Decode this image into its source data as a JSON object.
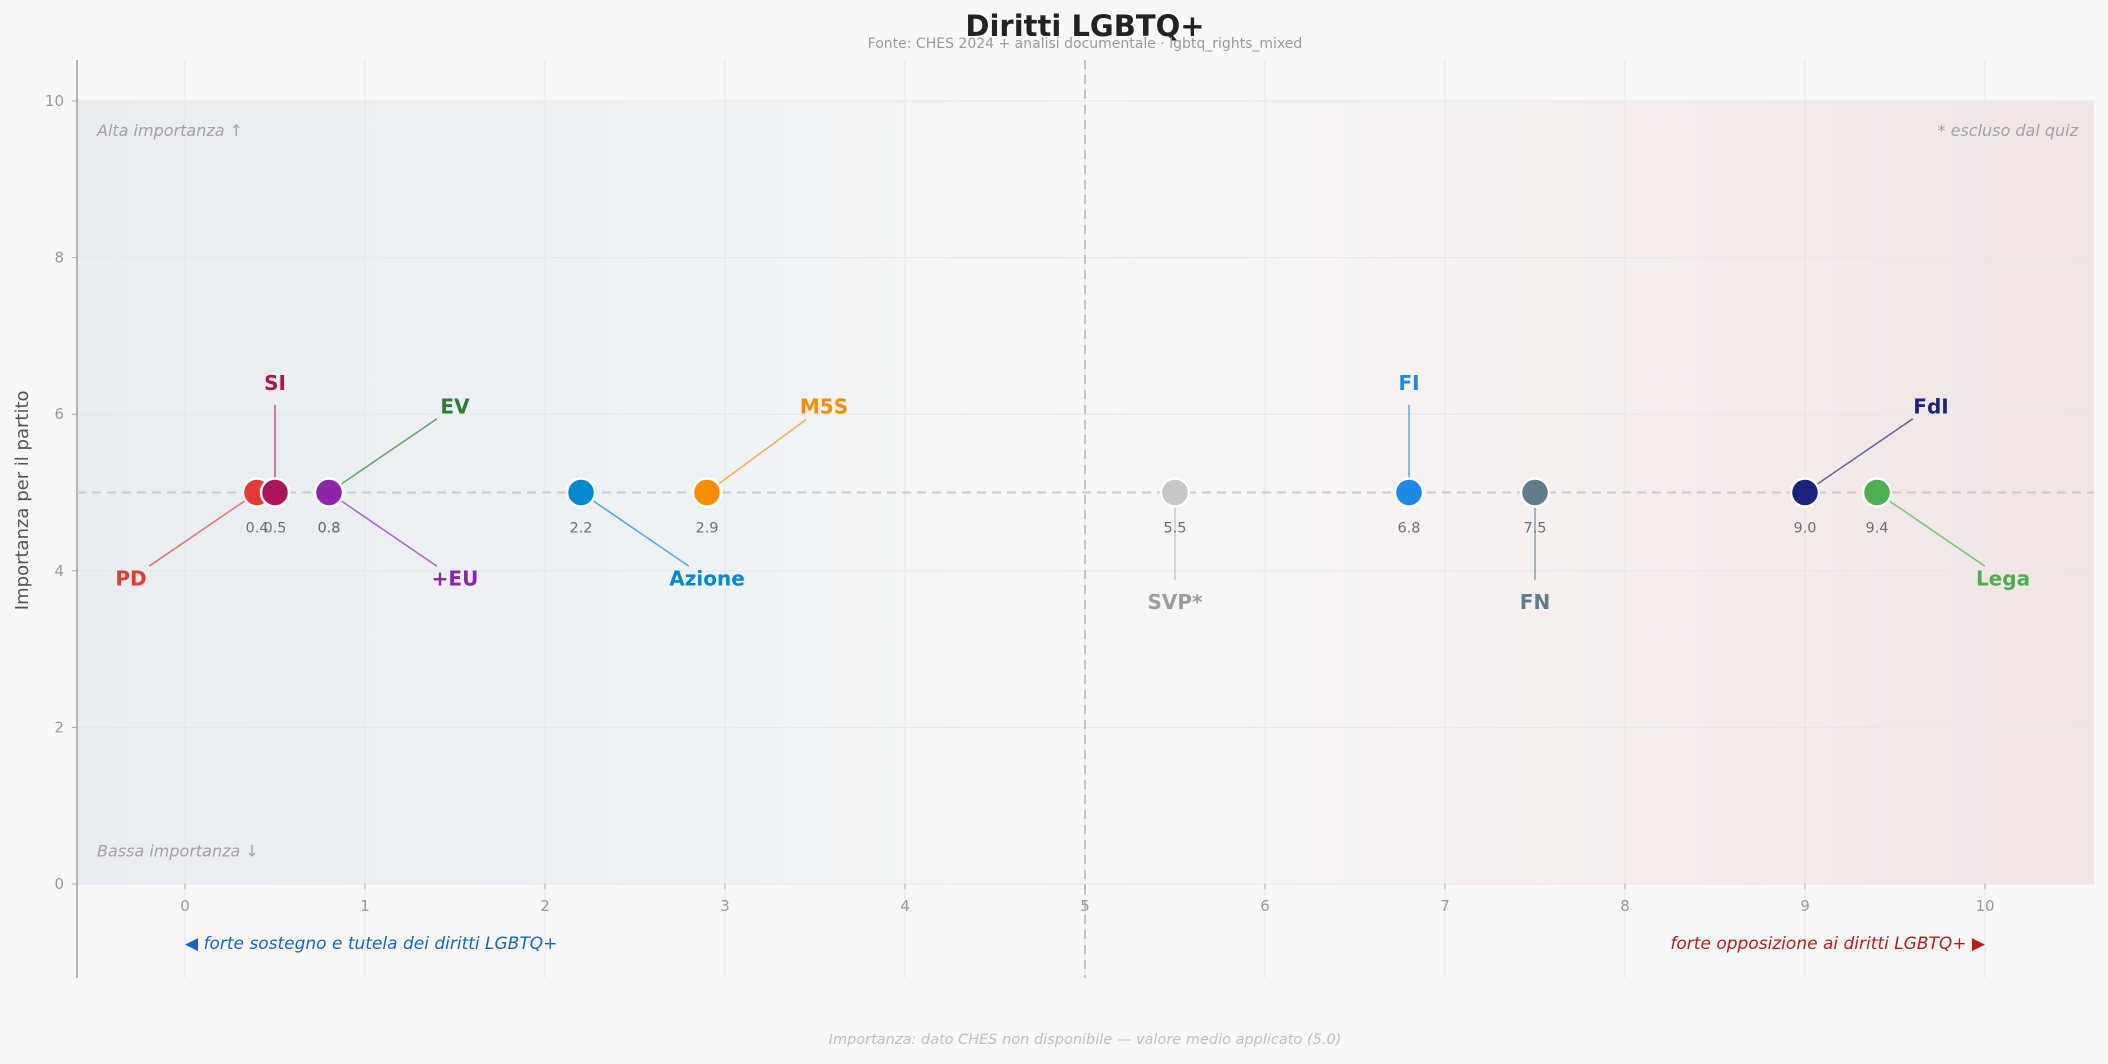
{
  "chart_data": {
    "type": "scatter",
    "title": "Diritti LGBTQ+",
    "subtitle": "Fonte: CHES 2024 + analisi documentale · lgbtq_rights_mixed",
    "ylabel": "Importanza per il partito",
    "xlim": [
      -0.6,
      10.6
    ],
    "ylim": [
      0,
      10
    ],
    "xticks": [
      "0",
      "1",
      "2",
      "3",
      "4",
      "5",
      "6",
      "7",
      "8",
      "9",
      "10"
    ],
    "yticks": [
      "0",
      "2",
      "4",
      "6",
      "8",
      "10"
    ],
    "grid": true,
    "midline_x": 5,
    "reference_y": 5,
    "left_annotation": "◀  forte sostegno e tutela dei diritti LGBTQ+",
    "right_annotation": "forte opposizione ai diritti LGBTQ+  ▶",
    "top_left_note": "Alta importanza ↑",
    "bottom_left_note": "Bassa importanza ↓",
    "top_right_note": "* escluso dal quiz",
    "footnote": "Importanza: dato CHES non disponibile — valore medio applicato (5.0)",
    "colors": {
      "left_accent": "#1565c0",
      "right_accent": "#b71c1c"
    },
    "points": [
      {
        "name": "PD",
        "x": 0.4,
        "y": 5,
        "value_label": "0.4",
        "color": "#e53935",
        "label_x": -0.3,
        "label_y": 3.9
      },
      {
        "name": "SI",
        "x": 0.5,
        "y": 5,
        "value_label": "0.5",
        "color": "#ad1457",
        "label_x": 0.5,
        "label_y": 6.4
      },
      {
        "name": "EV",
        "x": 0.8,
        "y": 5,
        "value_label": "0.8",
        "color": "#2e7d32",
        "label_x": 1.5,
        "label_y": 6.1
      },
      {
        "name": "+EU",
        "x": 0.8,
        "y": 5,
        "value_label": "0.8",
        "color": "#8e24aa",
        "label_x": 1.5,
        "label_y": 3.9
      },
      {
        "name": "Azione",
        "x": 2.2,
        "y": 5,
        "value_label": "2.2",
        "color": "#0288d1",
        "label_x": 2.9,
        "label_y": 3.9
      },
      {
        "name": "M5S",
        "x": 2.9,
        "y": 5,
        "value_label": "2.9",
        "color": "#fb8c00",
        "label_x": 3.55,
        "label_y": 6.1
      },
      {
        "name": "SVP*",
        "x": 5.5,
        "y": 5,
        "value_label": "5.5",
        "color": "#c7c7c7",
        "label_x": 5.5,
        "label_y": 3.6,
        "excluded": true
      },
      {
        "name": "FI",
        "x": 6.8,
        "y": 5,
        "value_label": "6.8",
        "color": "#1e88e5",
        "label_x": 6.8,
        "label_y": 6.4
      },
      {
        "name": "FN",
        "x": 7.5,
        "y": 5,
        "value_label": "7.5",
        "color": "#607d8b",
        "label_x": 7.5,
        "label_y": 3.6
      },
      {
        "name": "FdI",
        "x": 9.0,
        "y": 5,
        "value_label": "9.0",
        "color": "#1a237e",
        "label_x": 9.7,
        "label_y": 6.1
      },
      {
        "name": "Lega",
        "x": 9.4,
        "y": 5,
        "value_label": "9.4",
        "color": "#4caf50",
        "label_x": 10.1,
        "label_y": 3.9
      }
    ]
  }
}
